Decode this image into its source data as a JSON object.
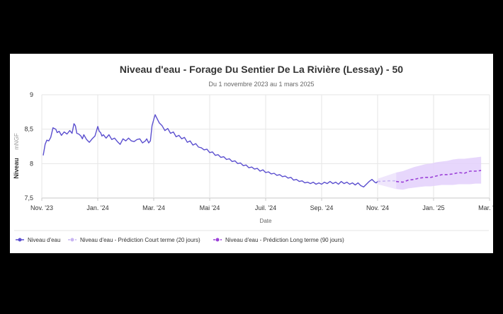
{
  "chart_data": {
    "type": "line",
    "title": "Niveau d'eau - Forage Du Sentier De La Rivière (Lessay) - 50",
    "subtitle": "Du 1 novembre 2023 au 1 mars 2025",
    "xlabel": "Date",
    "ylabel": "Niveau",
    "yunit": "mNGF",
    "ylim": [
      7.5,
      9
    ],
    "yticks": [
      "7,5",
      "8",
      "8,5",
      "9"
    ],
    "ytick_values": [
      7.5,
      8,
      8.5,
      9
    ],
    "x_start": "Nov. '23",
    "x_end": "Mar. '25",
    "xticks": [
      {
        "label": "Nov. '23",
        "m": 0
      },
      {
        "label": "Jan. '24",
        "m": 2
      },
      {
        "label": "Mar. '24",
        "m": 4
      },
      {
        "label": "Mai '24",
        "m": 6
      },
      {
        "label": "Juil. '24",
        "m": 8
      },
      {
        "label": "Sep. '24",
        "m": 10
      },
      {
        "label": "Nov. '24",
        "m": 12
      },
      {
        "label": "Jan. '25",
        "m": 14
      },
      {
        "label": "Mar. '25",
        "m": 16
      }
    ],
    "grid": true,
    "colors": {
      "observed": "#5b4fcf",
      "short_term": "#c9b6f2",
      "long_term": "#9b40d8",
      "band": "#e3d0fb"
    },
    "series": [
      {
        "name": "Niveau d'eau",
        "style": "solid",
        "x": [
          0.05,
          0.12,
          0.18,
          0.25,
          0.32,
          0.4,
          0.5,
          0.55,
          0.62,
          0.7,
          0.8,
          0.9,
          1.0,
          1.08,
          1.15,
          1.2,
          1.25,
          1.32,
          1.4,
          1.45,
          1.5,
          1.6,
          1.7,
          1.8,
          1.9,
          2.0,
          2.05,
          2.1,
          2.15,
          2.2,
          2.3,
          2.4,
          2.5,
          2.6,
          2.7,
          2.8,
          2.9,
          3.0,
          3.05,
          3.1,
          3.2,
          3.3,
          3.4,
          3.5,
          3.6,
          3.7,
          3.75,
          3.82,
          3.88,
          3.94,
          4.0,
          4.05,
          4.1,
          4.2,
          4.3,
          4.4,
          4.5,
          4.6,
          4.7,
          4.8,
          4.9,
          5.0,
          5.1,
          5.2,
          5.3,
          5.4,
          5.5,
          5.6,
          5.7,
          5.8,
          5.9,
          6.0,
          6.1,
          6.2,
          6.3,
          6.4,
          6.5,
          6.6,
          6.7,
          6.8,
          6.9,
          7.0,
          7.1,
          7.2,
          7.3,
          7.4,
          7.5,
          7.6,
          7.7,
          7.8,
          7.9,
          8.0,
          8.1,
          8.2,
          8.3,
          8.4,
          8.5,
          8.6,
          8.7,
          8.8,
          8.9,
          9.0,
          9.1,
          9.2,
          9.3,
          9.4,
          9.5,
          9.6,
          9.7,
          9.8,
          9.9,
          10.0,
          10.1,
          10.2,
          10.3,
          10.4,
          10.5,
          10.6,
          10.7,
          10.8,
          10.9,
          11.0,
          11.1,
          11.2,
          11.3,
          11.4,
          11.5,
          11.6,
          11.7,
          11.8,
          11.9,
          11.95,
          12.0
        ],
        "values": [
          8.12,
          8.28,
          8.34,
          8.33,
          8.38,
          8.52,
          8.5,
          8.45,
          8.47,
          8.41,
          8.46,
          8.43,
          8.48,
          8.44,
          8.58,
          8.55,
          8.44,
          8.43,
          8.4,
          8.36,
          8.42,
          8.35,
          8.31,
          8.36,
          8.4,
          8.54,
          8.47,
          8.45,
          8.4,
          8.42,
          8.37,
          8.42,
          8.35,
          8.37,
          8.32,
          8.28,
          8.36,
          8.33,
          8.35,
          8.37,
          8.33,
          8.32,
          8.35,
          8.36,
          8.3,
          8.33,
          8.36,
          8.3,
          8.33,
          8.55,
          8.64,
          8.71,
          8.67,
          8.59,
          8.55,
          8.48,
          8.51,
          8.44,
          8.46,
          8.39,
          8.41,
          8.36,
          8.38,
          8.31,
          8.33,
          8.27,
          8.29,
          8.24,
          8.23,
          8.2,
          8.21,
          8.16,
          8.17,
          8.12,
          8.13,
          8.09,
          8.1,
          8.06,
          8.07,
          8.03,
          8.04,
          8.0,
          8.01,
          7.97,
          7.98,
          7.94,
          7.95,
          7.92,
          7.93,
          7.89,
          7.91,
          7.87,
          7.88,
          7.85,
          7.86,
          7.83,
          7.84,
          7.81,
          7.82,
          7.79,
          7.8,
          7.76,
          7.77,
          7.74,
          7.75,
          7.72,
          7.73,
          7.71,
          7.73,
          7.7,
          7.72,
          7.7,
          7.73,
          7.71,
          7.74,
          7.71,
          7.73,
          7.7,
          7.74,
          7.71,
          7.73,
          7.7,
          7.72,
          7.69,
          7.72,
          7.68,
          7.66,
          7.7,
          7.74,
          7.77,
          7.73,
          7.72,
          7.74
        ]
      },
      {
        "name": "Niveau d'eau - Prédiction Court terme (20 jours)",
        "style": "dashed",
        "x": [
          12.0,
          12.2,
          12.4,
          12.66
        ],
        "values": [
          7.74,
          7.745,
          7.75,
          7.75
        ]
      },
      {
        "name": "Niveau d'eau - Prédiction Long terme (90 jours)",
        "style": "dashed-dots",
        "x": [
          12.66,
          12.9,
          13.1,
          13.3,
          13.5,
          13.7,
          13.9,
          14.1,
          14.3,
          14.5,
          14.7,
          14.9,
          15.1,
          15.3,
          15.5,
          15.7
        ],
        "values": [
          7.74,
          7.73,
          7.76,
          7.77,
          7.79,
          7.8,
          7.8,
          7.82,
          7.84,
          7.84,
          7.85,
          7.87,
          7.86,
          7.89,
          7.89,
          7.9
        ],
        "band_lower": [
          7.63,
          7.62,
          7.64,
          7.65,
          7.66,
          7.67,
          7.67,
          7.68,
          7.69,
          7.69,
          7.69,
          7.7,
          7.7,
          7.7,
          7.71,
          7.71
        ],
        "band_upper": [
          7.87,
          7.89,
          7.92,
          7.95,
          7.97,
          7.99,
          8.0,
          8.02,
          8.03,
          8.04,
          8.06,
          8.07,
          8.07,
          8.08,
          8.09,
          8.1
        ]
      }
    ]
  }
}
